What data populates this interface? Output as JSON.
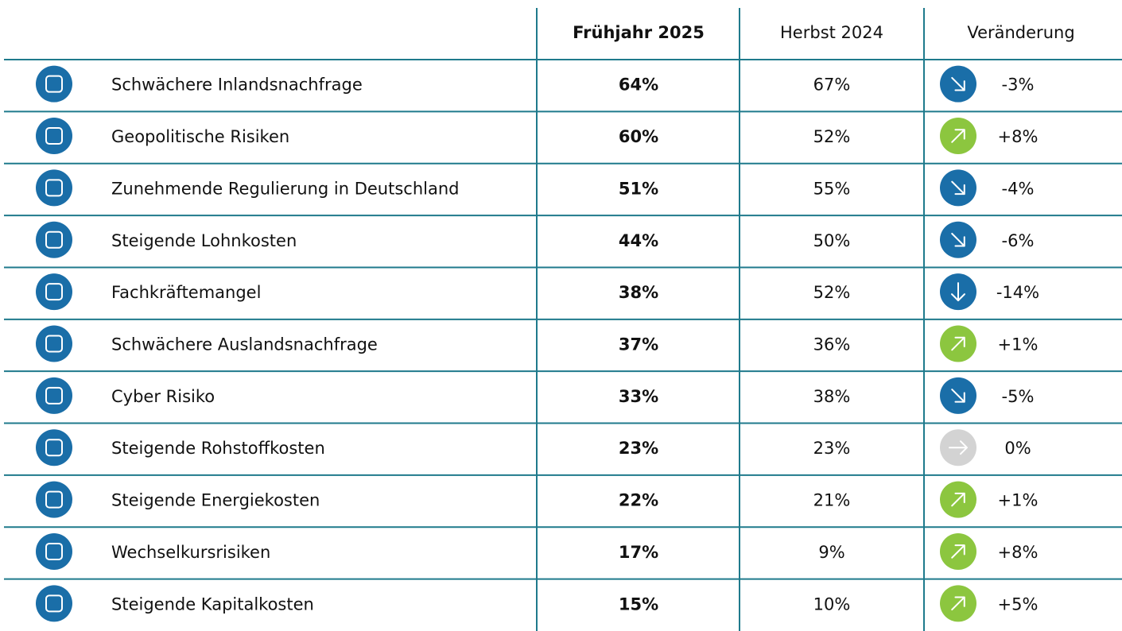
{
  "table": {
    "columns": [
      "Frühjahr 2025",
      "Herbst 2024",
      "Veränderung"
    ],
    "rows": [
      {
        "label": "Schwächere Inlandsnachfrage",
        "spring": "64%",
        "autumn": "67%",
        "change": "-3%",
        "arrow": "down-right"
      },
      {
        "label": "Geopolitische Risiken",
        "spring": "60%",
        "autumn": "52%",
        "change": "+8%",
        "arrow": "up-right"
      },
      {
        "label": "Zunehmende Regulierung in Deutschland",
        "spring": "51%",
        "autumn": "55%",
        "change": "-4%",
        "arrow": "down-right"
      },
      {
        "label": "Steigende Lohnkosten",
        "spring": "44%",
        "autumn": "50%",
        "change": "-6%",
        "arrow": "down-right"
      },
      {
        "label": "Fachkräftemangel",
        "spring": "38%",
        "autumn": "52%",
        "change": "-14%",
        "arrow": "down"
      },
      {
        "label": "Schwächere Auslandsnachfrage",
        "spring": "37%",
        "autumn": "36%",
        "change": "+1%",
        "arrow": "up-right"
      },
      {
        "label": "Cyber Risiko",
        "spring": "33%",
        "autumn": "38%",
        "change": "-5%",
        "arrow": "down-right"
      },
      {
        "label": "Steigende Rohstoffkosten",
        "spring": "23%",
        "autumn": "23%",
        "change": "0%",
        "arrow": "right"
      },
      {
        "label": "Steigende Energiekosten",
        "spring": "22%",
        "autumn": "21%",
        "change": "+1%",
        "arrow": "up-right"
      },
      {
        "label": "Wechselkursrisiken",
        "spring": "17%",
        "autumn": "9%",
        "change": "+8%",
        "arrow": "up-right"
      },
      {
        "label": "Steigende Kapitalkosten",
        "spring": "15%",
        "autumn": "10%",
        "change": "+5%",
        "arrow": "up-right"
      }
    ]
  }
}
